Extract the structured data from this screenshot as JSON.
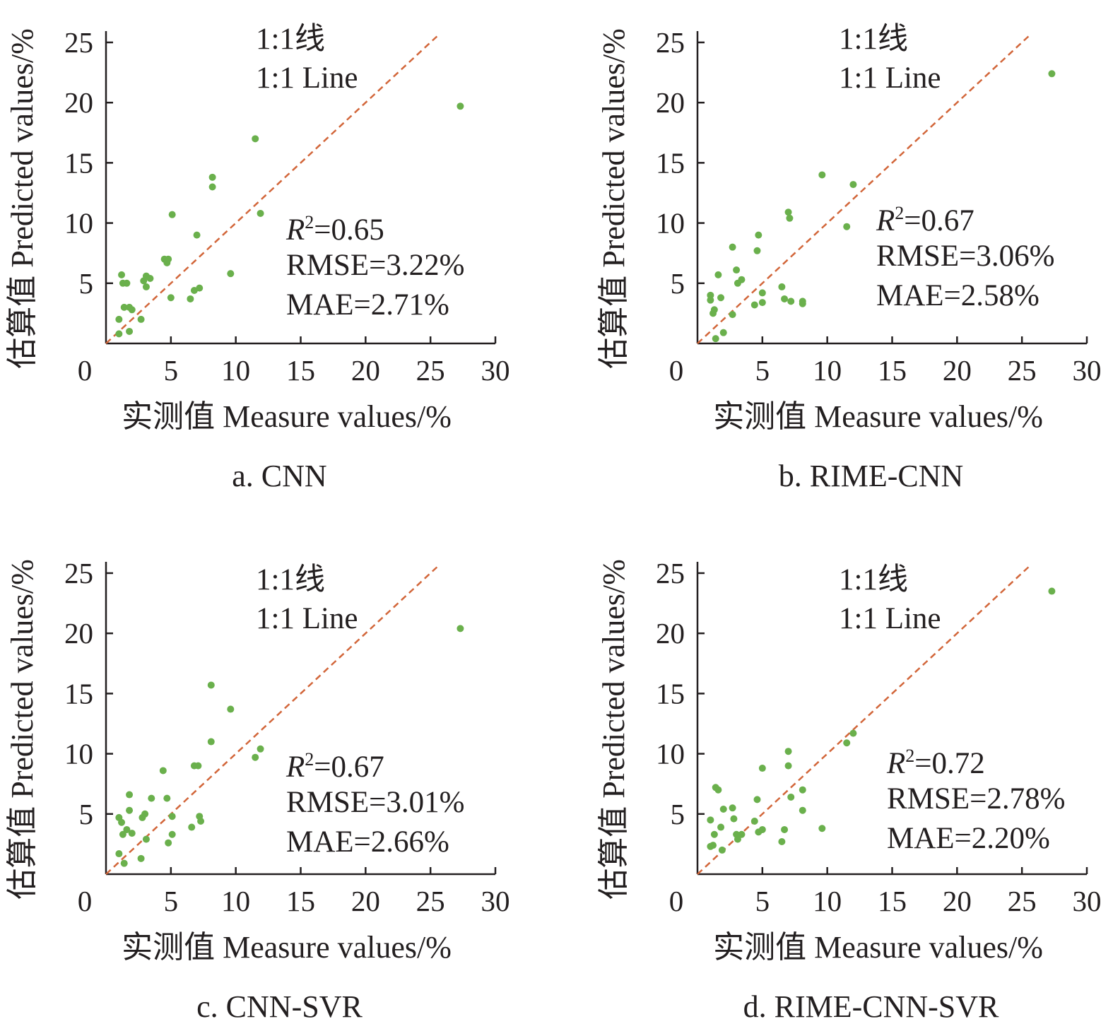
{
  "colors": {
    "points": "#6ab04c",
    "refline": "#d2663a",
    "axis": "#231f20"
  },
  "chart_data": [
    {
      "type": "scatter",
      "caption": "a. CNN",
      "xlabel": "实测值 Measure values/%",
      "ylabel": "估算值 Predicted values/%",
      "xlim": [
        0,
        30
      ],
      "ylim": [
        0,
        25
      ],
      "xticks": [
        "0",
        "5",
        "10",
        "15",
        "20",
        "25",
        "30"
      ],
      "yticks": [
        "5",
        "10",
        "15",
        "20",
        "25"
      ],
      "line_label": [
        "1:1线",
        "1:1 Line"
      ],
      "stats": {
        "r2": "=0.65",
        "rmse": "RMSE=3.22%",
        "mae": "MAE=2.71%"
      },
      "points": [
        [
          1,
          0.8
        ],
        [
          1,
          2
        ],
        [
          1.2,
          5.7
        ],
        [
          1.3,
          5
        ],
        [
          1.4,
          3
        ],
        [
          1.6,
          5
        ],
        [
          1.8,
          1
        ],
        [
          1.8,
          3
        ],
        [
          2,
          2.8
        ],
        [
          2.7,
          2
        ],
        [
          2.9,
          5.2
        ],
        [
          3.1,
          4.7
        ],
        [
          3.1,
          5.6
        ],
        [
          3.4,
          5.4
        ],
        [
          4.5,
          7
        ],
        [
          4.7,
          6.7
        ],
        [
          4.8,
          7
        ],
        [
          5,
          3.8
        ],
        [
          5.1,
          10.7
        ],
        [
          6.5,
          3.7
        ],
        [
          6.8,
          4.4
        ],
        [
          7,
          9
        ],
        [
          7.2,
          4.6
        ],
        [
          8.2,
          13
        ],
        [
          8.2,
          13.8
        ],
        [
          9.6,
          5.8
        ],
        [
          11.5,
          17
        ],
        [
          11.9,
          10.8
        ],
        [
          27.3,
          19.7
        ]
      ]
    },
    {
      "type": "scatter",
      "caption": "b. RIME-CNN",
      "xlabel": "实测值 Measure values/%",
      "ylabel": "估算值 Predicted values/%",
      "xlim": [
        0,
        30
      ],
      "ylim": [
        0,
        25
      ],
      "xticks": [
        "0",
        "5",
        "10",
        "15",
        "20",
        "25",
        "30"
      ],
      "yticks": [
        "5",
        "10",
        "15",
        "20",
        "25"
      ],
      "line_label": [
        "1:1线",
        "1:1 Line"
      ],
      "stats": {
        "r2": "=0.67",
        "rmse": "RMSE=3.06%",
        "mae": "MAE=2.58%"
      },
      "points": [
        [
          1,
          3.6
        ],
        [
          1,
          4
        ],
        [
          1.2,
          2.5
        ],
        [
          1.3,
          2.8
        ],
        [
          1.4,
          0.4
        ],
        [
          1.6,
          5.7
        ],
        [
          1.8,
          3.8
        ],
        [
          2,
          0.9
        ],
        [
          2.7,
          2.4
        ],
        [
          2.7,
          8
        ],
        [
          3,
          6.1
        ],
        [
          3.1,
          5
        ],
        [
          3.4,
          5.3
        ],
        [
          4.4,
          3.2
        ],
        [
          4.6,
          7.7
        ],
        [
          4.7,
          9
        ],
        [
          5,
          3.4
        ],
        [
          5,
          4.2
        ],
        [
          6.5,
          4.7
        ],
        [
          6.7,
          3.7
        ],
        [
          7,
          10.9
        ],
        [
          7.1,
          10.4
        ],
        [
          7.2,
          3.5
        ],
        [
          8.1,
          3.3
        ],
        [
          8.1,
          3.5
        ],
        [
          9.6,
          14
        ],
        [
          11.5,
          9.7
        ],
        [
          12,
          13.2
        ],
        [
          27.3,
          22.4
        ]
      ]
    },
    {
      "type": "scatter",
      "caption": "c. CNN-SVR",
      "xlabel": "实测值 Measure values/%",
      "ylabel": "估算值 Predicted values/%",
      "xlim": [
        0,
        30
      ],
      "ylim": [
        0,
        25
      ],
      "xticks": [
        "0",
        "5",
        "10",
        "15",
        "20",
        "25",
        "30"
      ],
      "yticks": [
        "5",
        "10",
        "15",
        "20",
        "25"
      ],
      "line_label": [
        "1:1线",
        "1:1 Line"
      ],
      "stats": {
        "r2": "=0.67",
        "rmse": "RMSE=3.01%",
        "mae": "MAE=2.66%"
      },
      "points": [
        [
          1,
          1.7
        ],
        [
          1,
          4.7
        ],
        [
          1.2,
          4.3
        ],
        [
          1.3,
          3.3
        ],
        [
          1.4,
          0.9
        ],
        [
          1.6,
          3.7
        ],
        [
          1.8,
          6.6
        ],
        [
          1.8,
          5.3
        ],
        [
          2,
          3.4
        ],
        [
          2.7,
          1.3
        ],
        [
          2.8,
          4.7
        ],
        [
          3,
          5
        ],
        [
          3.1,
          2.9
        ],
        [
          3.5,
          6.3
        ],
        [
          4.4,
          8.6
        ],
        [
          4.7,
          6.3
        ],
        [
          4.8,
          2.6
        ],
        [
          5.1,
          3.3
        ],
        [
          5.1,
          4.8
        ],
        [
          6.6,
          3.9
        ],
        [
          6.8,
          9
        ],
        [
          7.1,
          9
        ],
        [
          7.2,
          4.8
        ],
        [
          7.3,
          4.4
        ],
        [
          8.1,
          11
        ],
        [
          8.1,
          15.7
        ],
        [
          9.6,
          13.7
        ],
        [
          11.5,
          9.7
        ],
        [
          11.9,
          10.4
        ],
        [
          27.3,
          20.4
        ]
      ]
    },
    {
      "type": "scatter",
      "caption": "d. RIME-CNN-SVR",
      "xlabel": "实测值 Measure values/%",
      "ylabel": "估算值 Predicted values/%",
      "xlim": [
        0,
        30
      ],
      "ylim": [
        0,
        25
      ],
      "xticks": [
        "0",
        "5",
        "10",
        "15",
        "20",
        "25",
        "30"
      ],
      "yticks": [
        "5",
        "10",
        "15",
        "20",
        "25"
      ],
      "line_label": [
        "1:1线",
        "1:1 Line"
      ],
      "stats": {
        "r2": "=0.72",
        "rmse": "RMSE=2.78%",
        "mae": "MAE=2.20%"
      },
      "points": [
        [
          1,
          2.3
        ],
        [
          1,
          4.5
        ],
        [
          1.2,
          2.4
        ],
        [
          1.3,
          3.3
        ],
        [
          1.4,
          7.2
        ],
        [
          1.6,
          7
        ],
        [
          1.8,
          3.9
        ],
        [
          1.9,
          2
        ],
        [
          2,
          5.4
        ],
        [
          2.7,
          5.5
        ],
        [
          2.8,
          4.6
        ],
        [
          3,
          3.3
        ],
        [
          3.1,
          2.9
        ],
        [
          3.4,
          3.3
        ],
        [
          4.4,
          4.4
        ],
        [
          4.6,
          6.2
        ],
        [
          4.7,
          3.5
        ],
        [
          5,
          3.7
        ],
        [
          5,
          8.8
        ],
        [
          6.5,
          2.7
        ],
        [
          6.7,
          3.7
        ],
        [
          7,
          10.2
        ],
        [
          7,
          9
        ],
        [
          7.2,
          6.4
        ],
        [
          8.1,
          5.3
        ],
        [
          8.1,
          7
        ],
        [
          9.6,
          3.8
        ],
        [
          11.5,
          10.9
        ],
        [
          12,
          11.7
        ],
        [
          27.3,
          23.5
        ]
      ]
    }
  ]
}
